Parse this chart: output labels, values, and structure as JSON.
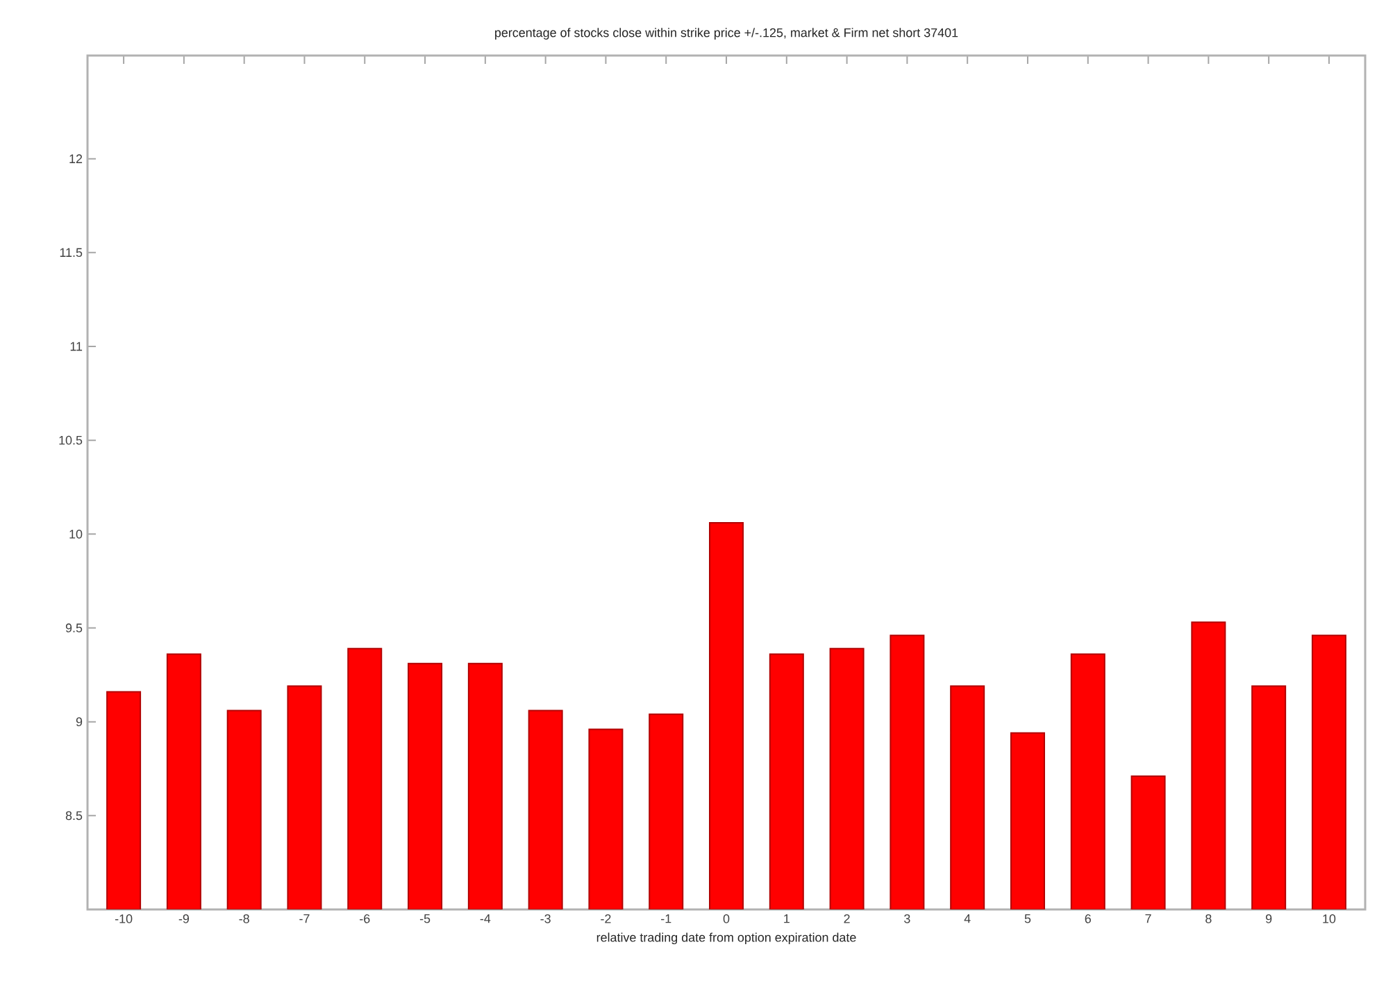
{
  "chart_data": {
    "type": "bar",
    "title": "percentage of stocks close within strike price +/-.125, market & Firm net short 37401",
    "xlabel": "relative trading date from option expiration date",
    "categories": [
      "-10",
      "-9",
      "-8",
      "-7",
      "-6",
      "-5",
      "-4",
      "-3",
      "-2",
      "-1",
      "0",
      "1",
      "2",
      "3",
      "4",
      "5",
      "6",
      "7",
      "8",
      "9",
      "10"
    ],
    "values": [
      9.16,
      9.36,
      9.06,
      9.19,
      9.39,
      9.31,
      9.31,
      9.06,
      8.96,
      9.04,
      10.06,
      9.36,
      9.39,
      9.46,
      9.19,
      8.94,
      9.36,
      8.71,
      9.53,
      9.19,
      9.46
    ],
    "color": "#ff0000",
    "ylim": [
      8,
      12.55
    ],
    "yticks": [
      8.5,
      9,
      9.5,
      10,
      10.5,
      11,
      11.5,
      12
    ],
    "grid": false
  }
}
